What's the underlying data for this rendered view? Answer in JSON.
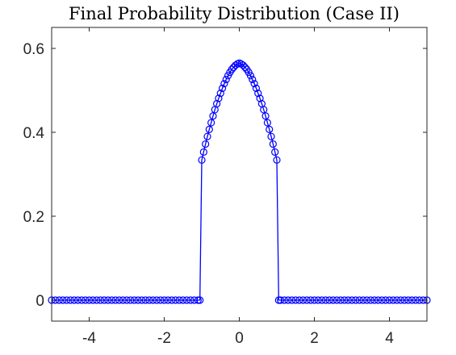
{
  "chart_data": {
    "type": "line",
    "title": "Final Probability Distribution (Case II)",
    "xlabel": "",
    "ylabel": "",
    "xlim": [
      -5,
      5
    ],
    "ylim": [
      -0.05,
      0.65
    ],
    "xticks": [
      -4,
      -2,
      0,
      2,
      4
    ],
    "xtick_labels": [
      "-4",
      "-2",
      "0",
      "2",
      "4"
    ],
    "yticks": [
      0,
      0.2,
      0.4,
      0.6
    ],
    "ytick_labels": [
      "0",
      "0.2",
      "0.4",
      "0.6"
    ],
    "grid": false,
    "marker": "circle-open",
    "series": [
      {
        "color": "#0000ff",
        "x": [
          -5.0,
          -4.9,
          -4.8,
          -4.7,
          -4.6,
          -4.5,
          -4.4,
          -4.3,
          -4.2,
          -4.1,
          -4.0,
          -3.9,
          -3.8,
          -3.7,
          -3.6,
          -3.5,
          -3.4,
          -3.3,
          -3.2,
          -3.1,
          -3.0,
          -2.9,
          -2.8,
          -2.7,
          -2.6,
          -2.5,
          -2.4,
          -2.3,
          -2.2,
          -2.1,
          -2.0,
          -1.9,
          -1.8,
          -1.7,
          -1.6,
          -1.5,
          -1.4,
          -1.3,
          -1.2,
          -1.1,
          -1.05,
          -1.0,
          -0.95,
          -0.9,
          -0.85,
          -0.8,
          -0.75,
          -0.7,
          -0.65,
          -0.6,
          -0.55,
          -0.5,
          -0.45,
          -0.4,
          -0.35,
          -0.3,
          -0.25,
          -0.2,
          -0.15,
          -0.1,
          -0.05,
          0.0,
          0.05,
          0.1,
          0.15,
          0.2,
          0.25,
          0.3,
          0.35,
          0.4,
          0.45,
          0.5,
          0.55,
          0.6,
          0.65,
          0.7,
          0.75,
          0.8,
          0.85,
          0.9,
          0.95,
          1.0,
          1.05,
          1.1,
          1.2,
          1.3,
          1.4,
          1.5,
          1.6,
          1.7,
          1.8,
          1.9,
          2.0,
          2.1,
          2.2,
          2.3,
          2.4,
          2.5,
          2.6,
          2.7,
          2.8,
          2.9,
          3.0,
          3.1,
          3.2,
          3.3,
          3.4,
          3.5,
          3.6,
          3.7,
          3.8,
          3.9,
          4.0,
          4.1,
          4.2,
          4.3,
          4.4,
          4.5,
          4.6,
          4.7,
          4.8,
          4.9,
          5.0
        ],
        "y": [
          0,
          0,
          0,
          0,
          0,
          0,
          0,
          0,
          0,
          0,
          0,
          0,
          0,
          0,
          0,
          0,
          0,
          0,
          0,
          0,
          0,
          0,
          0,
          0,
          0,
          0,
          0,
          0,
          0,
          0,
          0,
          0,
          0,
          0,
          0,
          0,
          0,
          0,
          0,
          0,
          0,
          0.334,
          0.353,
          0.372,
          0.39,
          0.407,
          0.423,
          0.439,
          0.454,
          0.468,
          0.481,
          0.493,
          0.505,
          0.516,
          0.526,
          0.535,
          0.543,
          0.55,
          0.555,
          0.56,
          0.563,
          0.565,
          0.563,
          0.56,
          0.555,
          0.55,
          0.543,
          0.535,
          0.526,
          0.516,
          0.505,
          0.493,
          0.481,
          0.468,
          0.454,
          0.439,
          0.423,
          0.407,
          0.39,
          0.372,
          0.353,
          0.334,
          0,
          0,
          0,
          0,
          0,
          0,
          0,
          0,
          0,
          0,
          0,
          0,
          0,
          0,
          0,
          0,
          0,
          0,
          0,
          0,
          0,
          0,
          0,
          0,
          0,
          0,
          0,
          0,
          0,
          0,
          0,
          0,
          0,
          0,
          0,
          0,
          0,
          0,
          0,
          0,
          0
        ]
      }
    ]
  }
}
